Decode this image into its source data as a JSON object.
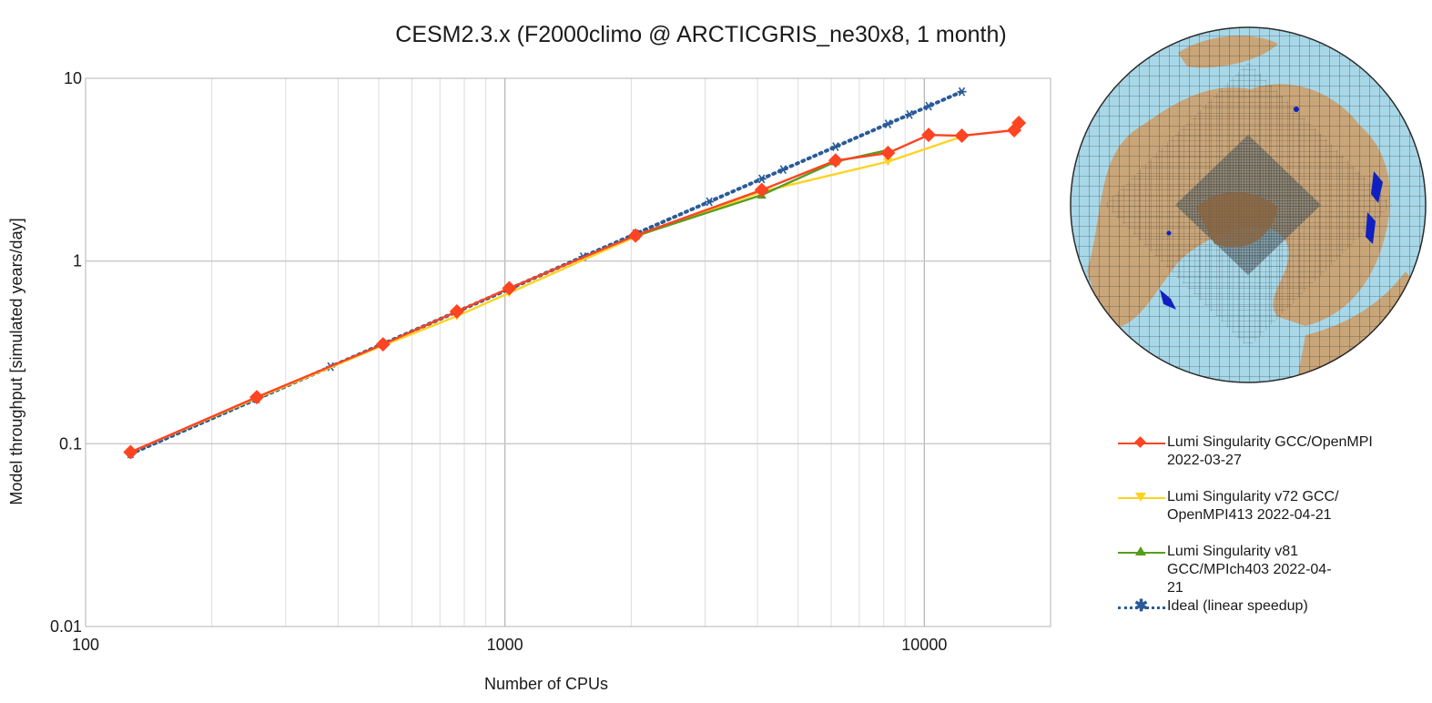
{
  "chart_data": {
    "type": "line",
    "title": "CESM2.3.x (F2000climo @ ARCTICGRIS_ne30x8, 1 month)",
    "xlabel": "Number of CPUs",
    "ylabel": "Model throughput [simulated years/day]",
    "xscale": "log",
    "yscale": "log",
    "xlim": [
      100,
      20000
    ],
    "ylim": [
      0.01,
      10
    ],
    "x_ticks": [
      100,
      1000,
      10000
    ],
    "x_tick_labels": [
      "100",
      "1000",
      "10000"
    ],
    "y_ticks": [
      0.01,
      0.1,
      1,
      10
    ],
    "y_tick_labels": [
      "0.01",
      "0.1",
      "1",
      "10"
    ],
    "grid": true,
    "legend_position": "right",
    "series": [
      {
        "name": "Lumi Singularity GCC/OpenMPI 2022-03-27",
        "color": "#ff4422",
        "marker": "diamond",
        "dash": "solid",
        "x": [
          128,
          256,
          512,
          768,
          1024,
          2048,
          4096,
          6144,
          8192,
          10240,
          12288,
          16384,
          16800
        ],
        "y": [
          0.09,
          0.18,
          0.35,
          0.53,
          0.71,
          1.38,
          2.45,
          3.55,
          3.9,
          4.9,
          4.85,
          5.2,
          5.7
        ]
      },
      {
        "name": "Lumi Singularity v72 GCC/ OpenMPI413 2022-04-21",
        "color": "#ffd320",
        "marker": "triangle-down",
        "dash": "solid",
        "x": [
          128,
          256,
          512,
          768,
          1024,
          2048,
          4096,
          8192,
          12288
        ],
        "y": [
          0.09,
          0.178,
          0.345,
          0.5,
          0.67,
          1.36,
          2.4,
          3.5,
          4.8
        ]
      },
      {
        "name": "Lumi Singularity v81 GCC/MPIch403 2022-04- 21",
        "color": "#579d1c",
        "marker": "triangle-up",
        "dash": "solid",
        "x": [
          2048,
          4096,
          6144,
          8192
        ],
        "y": [
          1.37,
          2.3,
          3.5,
          4.05
        ]
      },
      {
        "name": "Ideal (linear speedup)",
        "color": "#2a5b97",
        "marker": "asterisk",
        "dash": "dotted",
        "x": [
          128,
          256,
          384,
          512,
          768,
          1024,
          1536,
          2048,
          3072,
          4096,
          4608,
          6144,
          8192,
          9216,
          10240,
          12288
        ],
        "y": [
          0.088,
          0.176,
          0.264,
          0.352,
          0.528,
          0.704,
          1.056,
          1.408,
          2.112,
          2.816,
          3.168,
          4.224,
          5.632,
          6.336,
          7.04,
          8.448
        ]
      }
    ]
  },
  "legend": {
    "items": [
      {
        "line1": "Lumi Singularity GCC/OpenMPI",
        "line2": "2022-03-27",
        "line3": ""
      },
      {
        "line1": "Lumi Singularity v72 GCC/",
        "line2": "OpenMPI413 2022-04-21",
        "line3": ""
      },
      {
        "line1": "Lumi Singularity v81",
        "line2": "GCC/MPIch403 2022-04-",
        "line3": "21"
      },
      {
        "line1": "Ideal (linear speedup)",
        "line2": "",
        "line3": ""
      }
    ]
  },
  "colors": {
    "ocean": "#a8d8e8",
    "land": "#c9a67a",
    "grid_lines": "#2b2b2b",
    "highlight": "#1020c0",
    "plot_grid": "#c8c8c8"
  }
}
